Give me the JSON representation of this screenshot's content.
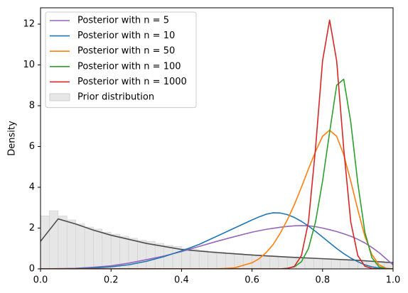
{
  "chart_data": {
    "type": "line",
    "ylabel": "Density",
    "xlim": [
      0,
      1
    ],
    "ylim": [
      0,
      12.8
    ],
    "xticks": [
      {
        "value": 0,
        "label": "0.0"
      },
      0.2,
      0.4,
      0.6,
      0.8,
      {
        "value": 1,
        "label": "1.0"
      }
    ],
    "yticks": [
      0,
      2,
      4,
      6,
      8,
      10,
      12
    ],
    "legend": "upper left",
    "x": [
      0,
      0.05,
      0.1,
      0.15,
      0.2,
      0.25,
      0.3,
      0.35,
      0.4,
      0.45,
      0.5,
      0.55,
      0.6,
      0.62,
      0.64,
      0.66,
      0.68,
      0.7,
      0.72,
      0.74,
      0.76,
      0.78,
      0.8,
      0.82,
      0.84,
      0.86,
      0.88,
      0.9,
      0.92,
      0.94,
      0.96,
      0.98,
      1
    ],
    "series": [
      {
        "name": "Posterior with n = 5",
        "color": "#9467bd",
        "values": [
          0,
          0.01,
          0.03,
          0.08,
          0.15,
          0.28,
          0.45,
          0.63,
          0.85,
          1.1,
          1.35,
          1.58,
          1.8,
          1.87,
          1.94,
          1.99,
          2.04,
          2.08,
          2.11,
          2.12,
          2.11,
          2.07,
          2.0,
          1.92,
          1.83,
          1.72,
          1.6,
          1.45,
          1.27,
          1.05,
          0.8,
          0.5,
          0.2
        ]
      },
      {
        "name": "Posterior with n = 10",
        "color": "#1f77b4",
        "values": [
          0,
          0,
          0.01,
          0.04,
          0.1,
          0.2,
          0.37,
          0.6,
          0.88,
          1.2,
          1.6,
          2.0,
          2.4,
          2.55,
          2.68,
          2.75,
          2.74,
          2.66,
          2.52,
          2.33,
          2.1,
          1.84,
          1.56,
          1.28,
          1.0,
          0.75,
          0.53,
          0.35,
          0.2,
          0.1,
          0.04,
          0.01,
          0
        ]
      },
      {
        "name": "Posterior with n = 50",
        "color": "#ff7f0e",
        "values": [
          0,
          0,
          0,
          0,
          0,
          0,
          0,
          0,
          0,
          0,
          0,
          0.05,
          0.3,
          0.5,
          0.8,
          1.2,
          1.75,
          2.4,
          3.15,
          4.0,
          4.9,
          5.75,
          6.5,
          6.8,
          6.5,
          5.6,
          4.3,
          2.9,
          1.6,
          0.7,
          0.2,
          0.03,
          0
        ]
      },
      {
        "name": "Posterior with n = 100",
        "color": "#2ca02c",
        "values": [
          0,
          0,
          0,
          0,
          0,
          0,
          0,
          0,
          0,
          0,
          0,
          0,
          0,
          0,
          0,
          0,
          0,
          0.03,
          0.1,
          0.35,
          1.0,
          2.3,
          4.3,
          6.7,
          9.0,
          9.3,
          7.2,
          4.2,
          1.8,
          0.55,
          0.1,
          0.01,
          0
        ]
      },
      {
        "name": "Posterior with n = 1000",
        "color": "#d62728",
        "values": [
          0,
          0,
          0,
          0,
          0,
          0,
          0,
          0,
          0,
          0,
          0,
          0,
          0,
          0,
          0,
          0,
          0,
          0.02,
          0.12,
          0.65,
          2.3,
          5.9,
          10.2,
          12.2,
          10.2,
          5.9,
          2.3,
          0.65,
          0.13,
          0.02,
          0,
          0,
          0
        ]
      }
    ],
    "prior_density": {
      "color": "#4d4d4d",
      "x": [
        0,
        0.05,
        0.1,
        0.15,
        0.2,
        0.3,
        0.4,
        0.5,
        0.6,
        0.7,
        0.8,
        0.9,
        1
      ],
      "values": [
        1.35,
        2.45,
        2.2,
        1.9,
        1.65,
        1.25,
        0.95,
        0.8,
        0.68,
        0.58,
        0.5,
        0.42,
        0.3
      ]
    },
    "histogram": {
      "label": "Prior distribution",
      "color": "#e6e6e6",
      "edgecolor": "#cfcfcf",
      "bins": [
        0,
        0.025,
        0.05,
        0.075,
        0.1,
        0.125,
        0.15,
        0.175,
        0.2,
        0.225,
        0.25,
        0.275,
        0.3,
        0.325,
        0.35,
        0.375,
        0.4,
        0.425,
        0.45,
        0.475,
        0.5,
        0.525,
        0.55,
        0.575,
        0.6,
        0.625,
        0.65,
        0.675,
        0.7,
        0.725,
        0.75,
        0.775,
        0.8,
        0.825,
        0.85,
        0.875,
        0.9,
        0.925,
        0.95,
        0.975,
        1
      ],
      "counts": [
        2.6,
        2.85,
        2.6,
        2.4,
        2.2,
        2.05,
        1.95,
        1.8,
        1.7,
        1.6,
        1.5,
        1.4,
        1.35,
        1.25,
        1.15,
        1.1,
        1.0,
        0.95,
        0.9,
        0.85,
        0.82,
        0.78,
        0.75,
        0.7,
        0.68,
        0.65,
        0.62,
        0.6,
        0.58,
        0.55,
        0.52,
        0.5,
        0.48,
        0.47,
        0.45,
        0.43,
        0.42,
        0.4,
        0.38,
        0.35
      ]
    }
  }
}
